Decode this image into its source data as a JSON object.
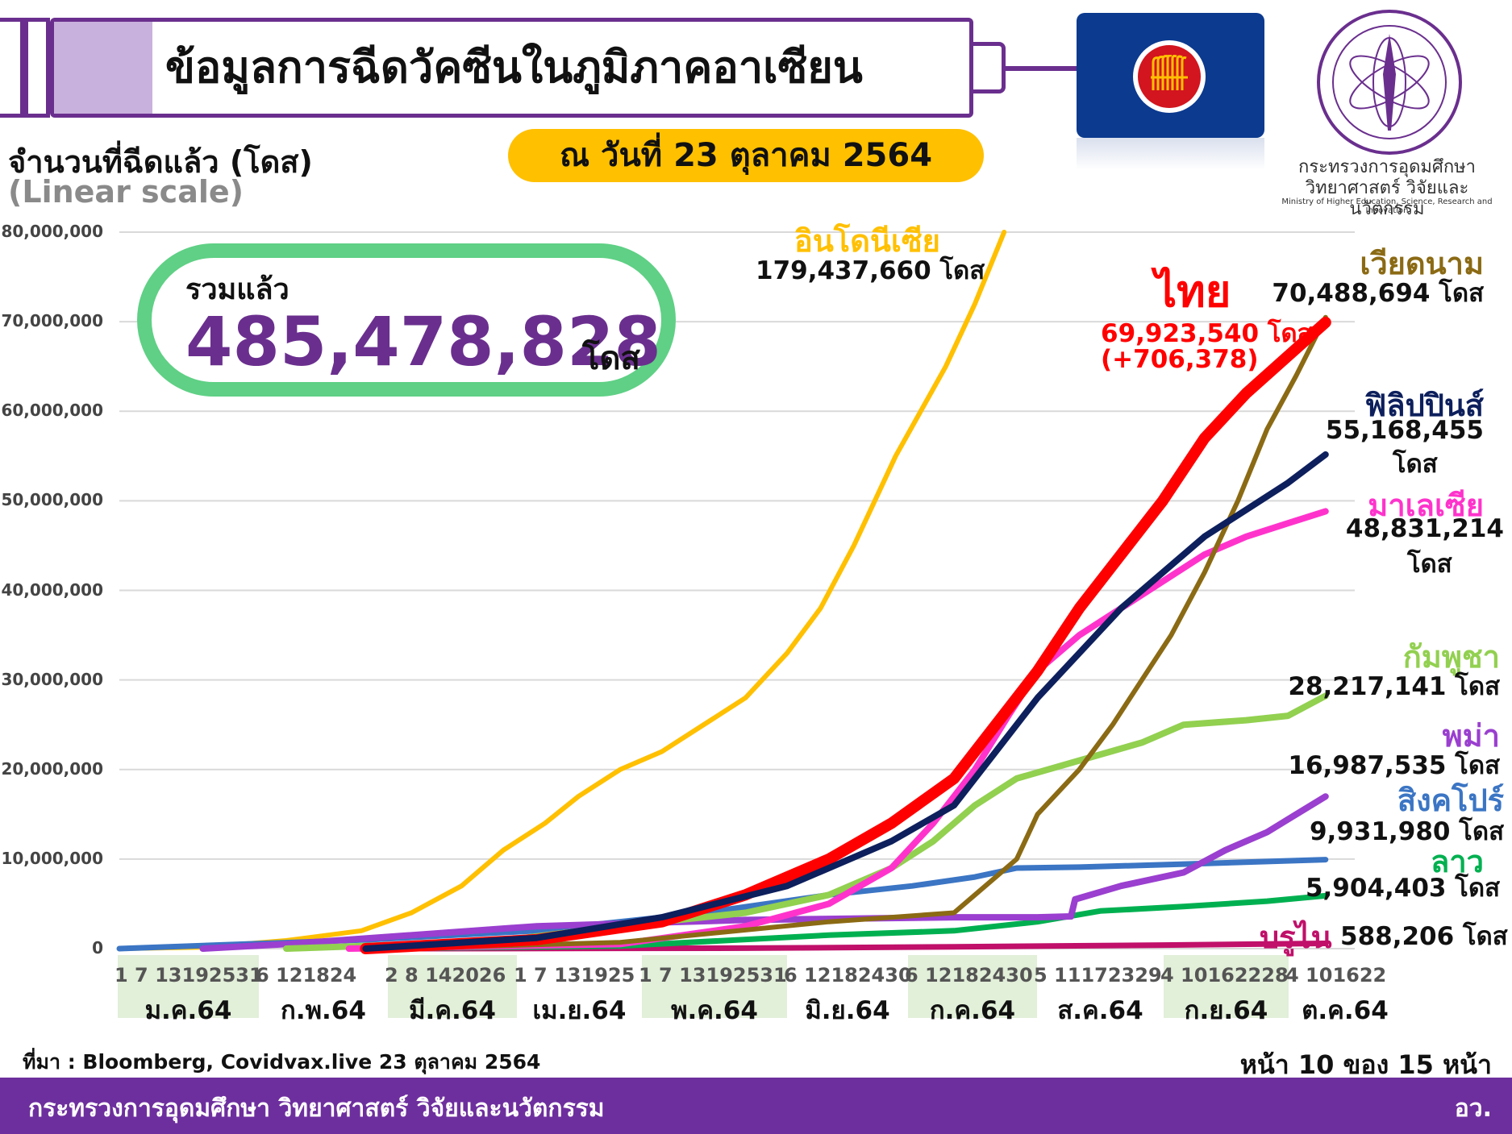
{
  "header": {
    "title": "ข้อมูลการฉีดวัคซีนในภูมิภาคอาเซียน",
    "date": "ณ วันที่ 23 ตุลาคม 2564"
  },
  "ministry": {
    "name_th": "กระทรวงการอุดมศึกษา วิทยาศาสตร์ วิจัยและนวัตกรรม",
    "name_en": "Ministry of Higher Education, Science, Research and Innovation"
  },
  "total": {
    "label": "รวมแล้ว",
    "value": "485,478,828",
    "unit": "โดส"
  },
  "chart_data": {
    "type": "line",
    "title": "จำนวนที่ฉีดแล้ว (โดส)",
    "subtitle": "(Linear scale)",
    "ylim": [
      0,
      80000000
    ],
    "y_ticks": [
      "0",
      "10,000,000",
      "20,000,000",
      "30,000,000",
      "40,000,000",
      "50,000,000",
      "60,000,000",
      "70,000,000",
      "80,000,000"
    ],
    "grid": true,
    "months": [
      {
        "label": "ม.ค.64",
        "days": "1  7 13192531",
        "shaded": true
      },
      {
        "label": "ก.พ.64",
        "days": "6 121824",
        "shaded": false
      },
      {
        "label": "มี.ค.64",
        "days": "2  8 142026",
        "shaded": true
      },
      {
        "label": "เม.ย.64",
        "days": "1  7 131925",
        "shaded": false
      },
      {
        "label": "พ.ค.64",
        "days": "1  7 13192531",
        "shaded": true
      },
      {
        "label": "มิ.ย.64",
        "days": "6 12182430",
        "shaded": false
      },
      {
        "label": "ก.ค.64",
        "days": "6 12182430",
        "shaded": true
      },
      {
        "label": "ส.ค.64",
        "days": "5 11172329",
        "shaded": false
      },
      {
        "label": "ก.ย.64",
        "days": "4 10162228",
        "shaded": true
      },
      {
        "label": "ต.ค.64",
        "days": "4 101622",
        "shaded": false
      }
    ],
    "x_max_day": 296,
    "series": [
      {
        "name": "อินโดนีเซีย",
        "final_label": "179,437,660 โดส",
        "color": "#ffc000",
        "width": 6,
        "points": [
          [
            0,
            0
          ],
          [
            20,
            150000
          ],
          [
            40,
            900000
          ],
          [
            58,
            2000000
          ],
          [
            70,
            4000000
          ],
          [
            82,
            7000000
          ],
          [
            92,
            11000000
          ],
          [
            102,
            14000000
          ],
          [
            110,
            17000000
          ],
          [
            120,
            20000000
          ],
          [
            130,
            22000000
          ],
          [
            140,
            25000000
          ],
          [
            150,
            28000000
          ],
          [
            160,
            33000000
          ],
          [
            168,
            38000000
          ],
          [
            176,
            45000000
          ],
          [
            182,
            51000000
          ],
          [
            186,
            55000000
          ],
          [
            192,
            60000000
          ],
          [
            198,
            65000000
          ],
          [
            205,
            72000000
          ],
          [
            212,
            80000000
          ]
        ]
      },
      {
        "name": "ไทย",
        "final_label": "69,923,540 โดส",
        "change_label": "(+706,378)",
        "color": "#ff0000",
        "width": 14,
        "points": [
          [
            59,
            0
          ],
          [
            100,
            1000000
          ],
          [
            130,
            3000000
          ],
          [
            150,
            6000000
          ],
          [
            170,
            10000000
          ],
          [
            185,
            14000000
          ],
          [
            200,
            19000000
          ],
          [
            210,
            25000000
          ],
          [
            220,
            31000000
          ],
          [
            230,
            38000000
          ],
          [
            240,
            44000000
          ],
          [
            250,
            50000000
          ],
          [
            260,
            57000000
          ],
          [
            270,
            62000000
          ],
          [
            282,
            67000000
          ],
          [
            289,
            69923540
          ]
        ]
      },
      {
        "name": "เวียดนาม",
        "final_label": "70,488,694 โดส",
        "color": "#8b6a14",
        "width": 6,
        "points": [
          [
            67,
            0
          ],
          [
            120,
            700000
          ],
          [
            170,
            3000000
          ],
          [
            200,
            4000000
          ],
          [
            205,
            6000000
          ],
          [
            215,
            10000000
          ],
          [
            220,
            15000000
          ],
          [
            230,
            20000000
          ],
          [
            238,
            25000000
          ],
          [
            245,
            30000000
          ],
          [
            252,
            35000000
          ],
          [
            260,
            42000000
          ],
          [
            268,
            50000000
          ],
          [
            275,
            58000000
          ],
          [
            282,
            64000000
          ],
          [
            289,
            70488694
          ]
        ]
      },
      {
        "name": "ฟิลิปปินส์",
        "final_label": "55,168,455",
        "final_unit": "โดส",
        "color": "#0d1f5c",
        "width": 8,
        "points": [
          [
            59,
            0
          ],
          [
            100,
            1200000
          ],
          [
            130,
            3500000
          ],
          [
            160,
            7000000
          ],
          [
            185,
            12000000
          ],
          [
            200,
            16000000
          ],
          [
            210,
            22000000
          ],
          [
            220,
            28000000
          ],
          [
            230,
            33000000
          ],
          [
            240,
            38000000
          ],
          [
            250,
            42000000
          ],
          [
            260,
            46000000
          ],
          [
            270,
            49000000
          ],
          [
            280,
            52000000
          ],
          [
            289,
            55168455
          ]
        ]
      },
      {
        "name": "มาเลเซีย",
        "final_label": "48,831,214",
        "final_unit": "โดส",
        "color": "#ff33cc",
        "width": 8,
        "points": [
          [
            55,
            0
          ],
          [
            120,
            500000
          ],
          [
            150,
            2500000
          ],
          [
            170,
            5000000
          ],
          [
            185,
            9000000
          ],
          [
            195,
            14000000
          ],
          [
            205,
            20000000
          ],
          [
            213,
            26000000
          ],
          [
            220,
            31000000
          ],
          [
            230,
            35000000
          ],
          [
            240,
            38000000
          ],
          [
            250,
            41000000
          ],
          [
            260,
            44000000
          ],
          [
            270,
            46000000
          ],
          [
            280,
            47500000
          ],
          [
            289,
            48831214
          ]
        ]
      },
      {
        "name": "กัมพูชา",
        "final_label": "28,217,141 โดส",
        "color": "#92d050",
        "width": 8,
        "points": [
          [
            40,
            0
          ],
          [
            90,
            800000
          ],
          [
            120,
            2500000
          ],
          [
            150,
            4000000
          ],
          [
            170,
            6000000
          ],
          [
            185,
            9000000
          ],
          [
            195,
            12000000
          ],
          [
            205,
            16000000
          ],
          [
            215,
            19000000
          ],
          [
            230,
            21000000
          ],
          [
            245,
            23000000
          ],
          [
            255,
            25000000
          ],
          [
            270,
            25500000
          ],
          [
            280,
            26000000
          ],
          [
            289,
            28217141
          ]
        ]
      },
      {
        "name": "พม่า",
        "final_label": "16,987,535 โดส",
        "color": "#9a3fcf",
        "width": 8,
        "points": [
          [
            20,
            0
          ],
          [
            40,
            500000
          ],
          [
            100,
            2500000
          ],
          [
            150,
            3200000
          ],
          [
            200,
            3500000
          ],
          [
            220,
            3500000
          ],
          [
            228,
            3600000
          ],
          [
            229,
            5500000
          ],
          [
            240,
            7000000
          ],
          [
            255,
            8500000
          ],
          [
            265,
            11000000
          ],
          [
            275,
            13000000
          ],
          [
            282,
            15000000
          ],
          [
            289,
            16987535
          ]
        ]
      },
      {
        "name": "สิงคโปร์",
        "final_label": "9,931,980 โดส",
        "color": "#3b75c4",
        "width": 7,
        "points": [
          [
            0,
            0
          ],
          [
            30,
            500000
          ],
          [
            60,
            1000000
          ],
          [
            100,
            2000000
          ],
          [
            140,
            4000000
          ],
          [
            170,
            6000000
          ],
          [
            190,
            7000000
          ],
          [
            205,
            8000000
          ],
          [
            215,
            9000000
          ],
          [
            230,
            9100000
          ],
          [
            260,
            9500000
          ],
          [
            289,
            9931980
          ]
        ]
      },
      {
        "name": "ลาว",
        "final_label": "5,904,403 โดส",
        "color": "#00b050",
        "width": 7,
        "points": [
          [
            60,
            0
          ],
          [
            120,
            300000
          ],
          [
            170,
            1500000
          ],
          [
            200,
            2000000
          ],
          [
            220,
            3000000
          ],
          [
            235,
            4200000
          ],
          [
            255,
            4700000
          ],
          [
            275,
            5300000
          ],
          [
            289,
            5904403
          ]
        ]
      },
      {
        "name": "บรูไน",
        "final_label": "588,206 โดส",
        "color": "#c0106a",
        "width": 7,
        "points": [
          [
            70,
            0
          ],
          [
            150,
            50000
          ],
          [
            200,
            200000
          ],
          [
            250,
            400000
          ],
          [
            289,
            588206
          ]
        ]
      }
    ]
  },
  "footer": {
    "source": "ที่มา : Bloomberg, Covidvax.live 23 ตุลาคม 2564",
    "page": "หน้า 10 ของ 15 หน้า",
    "ministry": "กระทรวงการอุดมศึกษา วิทยาศาสตร์ วิจัยและนวัตกรรม",
    "office": "อว."
  }
}
